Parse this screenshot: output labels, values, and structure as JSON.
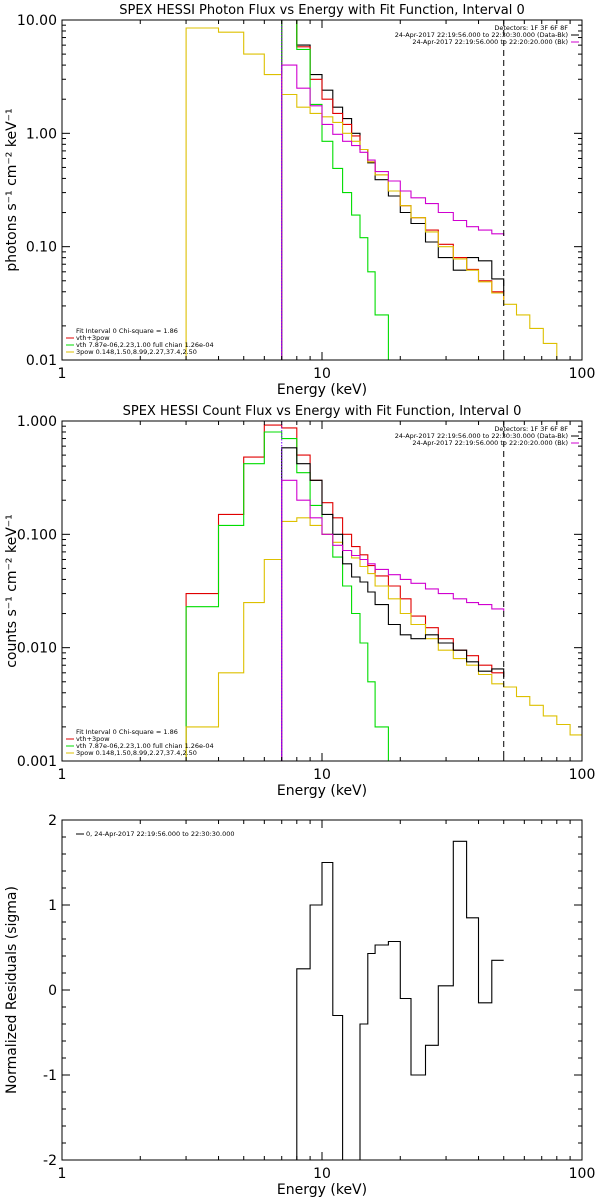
{
  "colors": {
    "black": "#000000",
    "red": "#e00000",
    "green": "#00dd00",
    "gold": "#ddc000",
    "magenta": "#d000d0",
    "blue": "#0000ff"
  },
  "chart_data": [
    {
      "type": "line",
      "title": "SPEX HESSI Photon Flux vs Energy with Fit Function, Interval 0",
      "xlabel": "Energy (keV)",
      "ylabel": "photons s⁻¹ cm⁻² keV⁻¹",
      "xscale": "log",
      "yscale": "log",
      "xlim": [
        1,
        100
      ],
      "ylim": [
        0.01,
        10
      ],
      "xticklabels": [
        "1",
        "10",
        "100"
      ],
      "yticks": [
        0.01,
        0.1,
        1,
        10
      ],
      "yticklabels": [
        "0.01",
        "0.10",
        "1.00",
        "10.00"
      ],
      "grid": false,
      "vlines": [
        {
          "x": 7,
          "color": "#8000ff",
          "style": "dotted"
        },
        {
          "x": 50,
          "color": "#000000",
          "style": "dashed"
        }
      ],
      "legend_topright": {
        "position": "top-right",
        "lines": [
          {
            "text": "Detectors: 1F 3F 6F 8F",
            "color": ""
          },
          {
            "text": "24-Apr-2017 22:19:56.000 to 22:30:30.000 (Data-Bk)",
            "color": "#000000"
          },
          {
            "text": "24-Apr-2017 22:19:56.000 to 22:20:20.000 (Bk)",
            "color": "#d000d0"
          }
        ]
      },
      "legend_bottomleft": {
        "position": "bottom-left",
        "lines": [
          {
            "text": "Fit Interval 0   Chi-square = 1.86",
            "color": ""
          },
          {
            "text": "vth+3pow",
            "color": "#e00000"
          },
          {
            "text": "vth 7.87e-06,2.23,1.00  full chian 1.26e-04",
            "color": "#00dd00"
          },
          {
            "text": "3pow 0.148,1.50,8.99,2.27,37.4,2.50",
            "color": "#ddc000"
          }
        ]
      },
      "series": [
        {
          "name": "24-Apr-2017 22:19:56.000 to 22:30:30.000 (Data-Bk)",
          "color": "#000000",
          "edges": [
            7,
            8,
            9,
            10,
            11,
            12,
            13,
            14,
            15,
            16,
            18,
            20,
            22,
            25,
            28,
            32,
            36,
            40,
            45,
            50
          ],
          "values": [
            10,
            6,
            3.3,
            2.4,
            1.7,
            1.35,
            1,
            0.72,
            0.55,
            0.39,
            0.28,
            0.2,
            0.16,
            0.11,
            0.08,
            0.062,
            0.08,
            0.075,
            0.052,
            0.04
          ]
        },
        {
          "name": "vth+3pow",
          "color": "#e00000",
          "edges": [
            7,
            8,
            9,
            10,
            11,
            12,
            13,
            14,
            15,
            16,
            18,
            20,
            22,
            25,
            28,
            32,
            36,
            40,
            45,
            50
          ],
          "values": [
            12,
            5.8,
            3,
            2,
            1.5,
            1.2,
            0.95,
            0.72,
            0.56,
            0.43,
            0.31,
            0.23,
            0.18,
            0.14,
            0.105,
            0.08,
            0.063,
            0.05,
            0.04,
            0.034
          ]
        },
        {
          "name": "vth 7.87e-06,2.23,1.00",
          "color": "#00dd00",
          "edges": [
            7,
            8,
            9,
            10,
            11,
            12,
            13,
            14,
            15,
            16,
            18
          ],
          "values": [
            12,
            5.5,
            1.8,
            0.85,
            0.49,
            0.3,
            0.19,
            0.12,
            0.06,
            0.025,
            0.01
          ]
        },
        {
          "name": "3pow 0.148,1.50,8.99,2.27,37.4,2.50",
          "color": "#ddc000",
          "edges": [
            3,
            4,
            5,
            6,
            7,
            8,
            9,
            10,
            11,
            12,
            13,
            14,
            15,
            16,
            18,
            20,
            22,
            25,
            28,
            32,
            36,
            40,
            45,
            50,
            56,
            63,
            71,
            80
          ],
          "values": [
            8.5,
            7.8,
            5,
            3.3,
            2.2,
            1.7,
            1.5,
            1.4,
            1.25,
            1,
            0.85,
            0.72,
            0.56,
            0.43,
            0.31,
            0.23,
            0.18,
            0.135,
            0.1,
            0.078,
            0.062,
            0.049,
            0.039,
            0.031,
            0.025,
            0.019,
            0.014,
            0.01
          ]
        },
        {
          "name": "24-Apr-2017 22:19:56.000 to 22:20:20.000 (Bk)",
          "color": "#d000d0",
          "edges": [
            7,
            8,
            9,
            10,
            11,
            12,
            13,
            14,
            15,
            16,
            18,
            20,
            22,
            25,
            28,
            32,
            36,
            40,
            45,
            50
          ],
          "values": [
            4,
            2.5,
            1.75,
            1.2,
            0.98,
            0.85,
            0.78,
            0.68,
            0.58,
            0.46,
            0.38,
            0.31,
            0.27,
            0.24,
            0.2,
            0.17,
            0.15,
            0.14,
            0.13,
            0.125
          ]
        }
      ]
    },
    {
      "type": "line",
      "title": "SPEX HESSI Count Flux vs Energy with Fit Function, Interval 0",
      "xlabel": "Energy (keV)",
      "ylabel": "counts s⁻¹ cm⁻² keV⁻¹",
      "xscale": "log",
      "yscale": "log",
      "xlim": [
        1,
        100
      ],
      "ylim": [
        0.001,
        1
      ],
      "xticklabels": [
        "1",
        "10",
        "100"
      ],
      "yticks": [
        0.001,
        0.01,
        0.1,
        1
      ],
      "yticklabels": [
        "0.001",
        "0.010",
        "0.100",
        "1.000"
      ],
      "grid": false,
      "vlines": [
        {
          "x": 7,
          "color": "#8000ff",
          "style": "dotted"
        },
        {
          "x": 50,
          "color": "#000000",
          "style": "dashed"
        }
      ],
      "legend_topright": {
        "position": "top-right",
        "lines": [
          {
            "text": "Detectors: 1F 3F 6F 8F",
            "color": ""
          },
          {
            "text": "24-Apr-2017 22:19:56.000 to 22:30:30.000 (Data-Bk)",
            "color": "#000000"
          },
          {
            "text": "24-Apr-2017 22:19:56.000 to 22:20:20.000 (Bk)",
            "color": "#d000d0"
          }
        ]
      },
      "legend_bottomleft": {
        "position": "bottom-left",
        "lines": [
          {
            "text": "Fit Interval 0   Chi-square = 1.86",
            "color": ""
          },
          {
            "text": "vth+3pow",
            "color": "#e00000"
          },
          {
            "text": "vth 7.87e-06,2.23,1.00  full chian 1.26e-04",
            "color": "#00dd00"
          },
          {
            "text": "3pow 0.148,1.50,8.99,2.27,37.4,2.50",
            "color": "#ddc000"
          }
        ]
      },
      "series": [
        {
          "name": "vth+3pow",
          "color": "#e00000",
          "edges": [
            3,
            4,
            5,
            6,
            7,
            8,
            9,
            10,
            11,
            12,
            13,
            14,
            15,
            16,
            18,
            20,
            22,
            25,
            28,
            32,
            36,
            40,
            45,
            50
          ],
          "values": [
            0.03,
            0.15,
            0.48,
            0.92,
            0.87,
            0.5,
            0.3,
            0.19,
            0.14,
            0.1,
            0.078,
            0.066,
            0.053,
            0.043,
            0.035,
            0.027,
            0.019,
            0.015,
            0.012,
            0.0095,
            0.0085,
            0.007,
            0.006,
            0.0055
          ]
        },
        {
          "name": "vth 7.87e-06,2.23,1.00",
          "color": "#00dd00",
          "edges": [
            3,
            4,
            5,
            6,
            7,
            8,
            9,
            10,
            11,
            12,
            13,
            14,
            15,
            16,
            18,
            20
          ],
          "values": [
            0.023,
            0.12,
            0.42,
            0.8,
            0.7,
            0.35,
            0.18,
            0.1,
            0.063,
            0.035,
            0.02,
            0.011,
            0.005,
            0.002,
            0.001
          ]
        },
        {
          "name": "3pow 0.148,1.50,8.99,2.27,37.4,2.50",
          "color": "#ddc000",
          "edges": [
            3,
            4,
            5,
            6,
            7,
            8,
            9,
            10,
            11,
            12,
            13,
            14,
            15,
            16,
            18,
            20,
            22,
            25,
            28,
            32,
            36,
            40,
            45,
            50,
            56,
            63,
            71,
            80,
            90,
            100
          ],
          "values": [
            0.002,
            0.006,
            0.025,
            0.06,
            0.13,
            0.14,
            0.12,
            0.1,
            0.085,
            0.072,
            0.062,
            0.052,
            0.045,
            0.035,
            0.027,
            0.02,
            0.016,
            0.012,
            0.0095,
            0.008,
            0.007,
            0.0058,
            0.0048,
            0.0045,
            0.0037,
            0.0031,
            0.0025,
            0.0021,
            0.0017
          ]
        },
        {
          "name": "24-Apr-2017 22:19:56.000 to 22:30:30.000 (Data-Bk)",
          "color": "#000000",
          "edges": [
            7,
            8,
            9,
            10,
            11,
            12,
            13,
            14,
            15,
            16,
            18,
            20,
            22,
            25,
            28,
            32,
            36,
            40,
            45,
            50
          ],
          "values": [
            0.58,
            0.42,
            0.3,
            0.15,
            0.1,
            0.055,
            0.042,
            0.038,
            0.031,
            0.024,
            0.016,
            0.013,
            0.012,
            0.013,
            0.011,
            0.0095,
            0.0075,
            0.0062,
            0.0065,
            0.0053
          ]
        },
        {
          "name": "24-Apr-2017 22:19:56.000 to 22:20:20.000 (Bk)",
          "color": "#d000d0",
          "edges": [
            7,
            8,
            9,
            10,
            11,
            12,
            13,
            14,
            15,
            16,
            18,
            20,
            22,
            25,
            28,
            32,
            36,
            40,
            45,
            50
          ],
          "values": [
            0.3,
            0.2,
            0.14,
            0.1,
            0.08,
            0.072,
            0.065,
            0.06,
            0.055,
            0.049,
            0.044,
            0.04,
            0.037,
            0.033,
            0.03,
            0.027,
            0.025,
            0.024,
            0.022,
            0.021
          ]
        }
      ]
    },
    {
      "type": "line",
      "title": "",
      "xlabel": "Energy (keV)",
      "ylabel": "Normalized Residuals (sigma)",
      "xscale": "log",
      "yscale": "linear",
      "xlim": [
        1,
        100
      ],
      "ylim": [
        -2,
        2
      ],
      "xticklabels": [
        "1",
        "10",
        "100"
      ],
      "yticks": [
        -2,
        -1,
        0,
        1,
        2
      ],
      "yticklabels": [
        "-2",
        "-1",
        "0",
        "1",
        "2"
      ],
      "grid": false,
      "vlines": [],
      "legend_topleft": {
        "position": "top-left",
        "lines": [
          {
            "text": "0, 24-Apr-2017 22:19:56.000 to 22:30:30.000",
            "color": "#000000"
          }
        ]
      },
      "series": [
        {
          "name": "0, 24-Apr-2017 22:19:56.000 to 22:30:30.000",
          "color": "#000000",
          "edges": [
            7,
            8,
            9,
            10,
            11,
            12,
            13,
            14,
            15,
            16,
            18,
            20,
            22,
            25,
            28,
            32,
            36,
            40,
            45,
            50
          ],
          "values": [
            -2.05,
            0.25,
            1.0,
            1.5,
            -0.3,
            -2.05,
            -2.05,
            -0.4,
            0.43,
            0.53,
            0.57,
            -0.1,
            -1.0,
            -0.65,
            0.05,
            1.75,
            0.85,
            -0.15,
            0.35
          ]
        }
      ]
    }
  ]
}
